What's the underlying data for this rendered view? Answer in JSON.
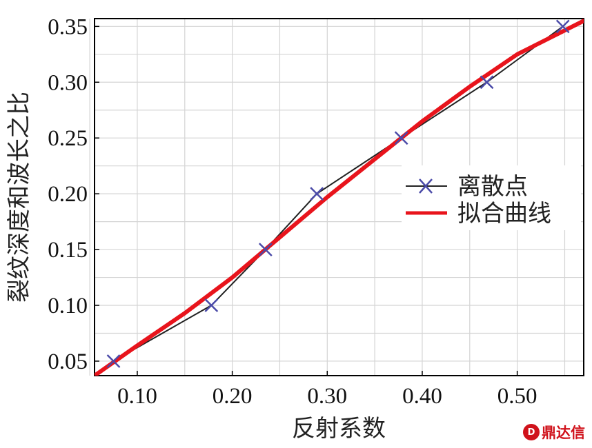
{
  "chart_data": {
    "type": "line",
    "xlabel": "反射系数",
    "ylabel": "裂纹深度和波长之比",
    "xlim": [
      0.055,
      0.57
    ],
    "ylim": [
      0.037,
      0.357
    ],
    "x_ticks": [
      "0.10",
      "0.20",
      "0.30",
      "0.40",
      "0.50"
    ],
    "y_ticks": [
      "0.05",
      "0.10",
      "0.15",
      "0.20",
      "0.25",
      "0.30",
      "0.35"
    ],
    "grid": true,
    "legend_position": "center-right",
    "series": [
      {
        "name": "离散点",
        "color": "#222222",
        "marker": "x",
        "marker_color": "#4a4aa8",
        "x": [
          0.075,
          0.178,
          0.235,
          0.289,
          0.378,
          0.468,
          0.548
        ],
        "y": [
          0.05,
          0.1,
          0.15,
          0.2,
          0.25,
          0.3,
          0.35
        ]
      },
      {
        "name": "拟合曲线",
        "color": "#e8141c",
        "x": [
          0.055,
          0.1,
          0.15,
          0.2,
          0.25,
          0.3,
          0.35,
          0.4,
          0.45,
          0.5,
          0.57
        ],
        "y": [
          0.037,
          0.064,
          0.093,
          0.125,
          0.161,
          0.197,
          0.231,
          0.265,
          0.296,
          0.325,
          0.355
        ]
      }
    ]
  },
  "watermark": {
    "logo": "D",
    "text": "鼎达信"
  }
}
